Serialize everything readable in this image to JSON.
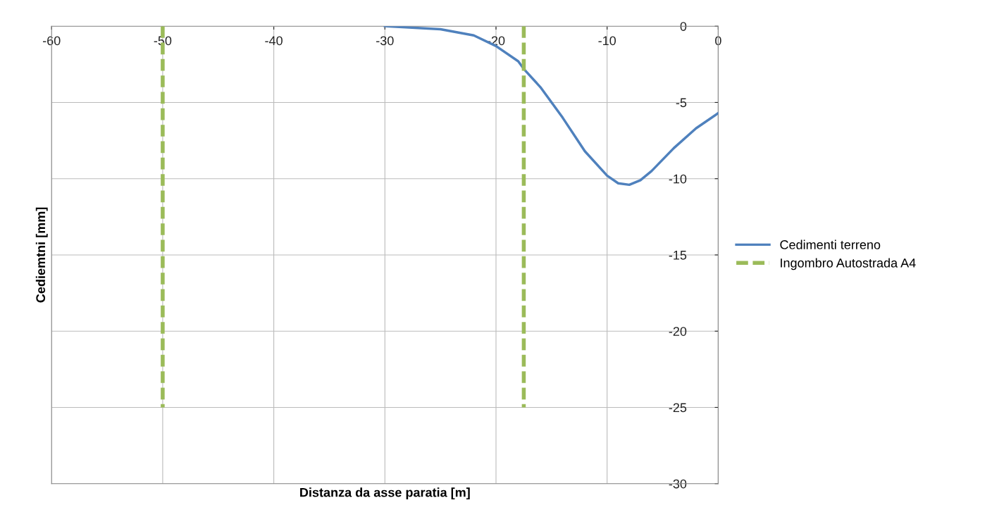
{
  "chart_data": {
    "type": "line",
    "xlabel": "Distanza da asse paratia [m]",
    "ylabel": "Cediemtni [mm]",
    "xlim": [
      -60,
      0
    ],
    "xticks": [
      -60,
      -50,
      -40,
      -30,
      -20,
      -10,
      0
    ],
    "ylim": [
      -30,
      0
    ],
    "yticks": [
      -30,
      -25,
      -20,
      -15,
      -10,
      -5,
      0
    ],
    "grid": true,
    "legend": "right",
    "series": [
      {
        "name": "Cedimenti terreno",
        "color": "#4f81bd",
        "line_style": "solid",
        "x": [
          -30,
          -25,
          -22,
          -20,
          -18,
          -17.5,
          -16,
          -14,
          -12,
          -10,
          -9,
          -8,
          -7,
          -6,
          -4,
          -2,
          0
        ],
        "values": [
          0,
          -0.2,
          -0.6,
          -1.3,
          -2.3,
          -2.8,
          -4,
          -6,
          -8.2,
          -9.8,
          -10.3,
          -10.4,
          -10.1,
          -9.5,
          -8,
          -6.7,
          -5.7
        ]
      },
      {
        "name": "Ingombro Autostrada A4",
        "color": "#9bbb59",
        "line_style": "dashed",
        "x": [
          -50,
          -50,
          null,
          -17.5,
          -17.5
        ],
        "values": [
          0,
          -25,
          null,
          0,
          -25
        ]
      }
    ]
  }
}
